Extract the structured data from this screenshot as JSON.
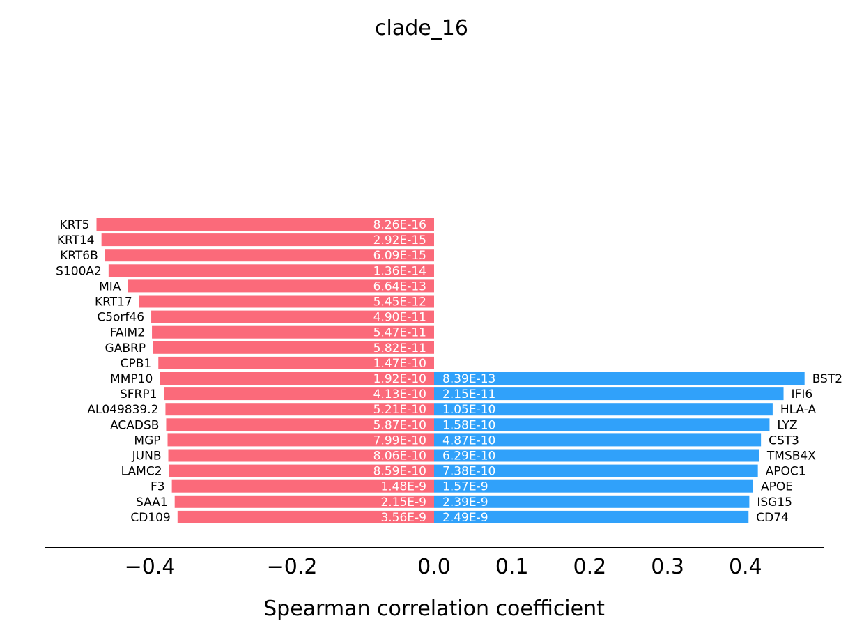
{
  "chart_data": {
    "type": "bar",
    "orientation": "horizontal-diverging",
    "title": "clade_16",
    "xlabel": "Spearman correlation coefficient",
    "ylabel": "",
    "grid": false,
    "left_xlim": [
      -0.48,
      0.0
    ],
    "right_xlim": [
      0.0,
      0.5
    ],
    "left_ticks": [
      "−0.4",
      "−0.2",
      "0.0"
    ],
    "left_tick_values": [
      -0.4,
      -0.2,
      0.0
    ],
    "right_ticks": [
      "0.1",
      "0.2",
      "0.3",
      "0.4"
    ],
    "right_tick_values": [
      0.1,
      0.2,
      0.3,
      0.4
    ],
    "colors": {
      "negative": "#fb6a7a",
      "positive": "#30a1fa"
    },
    "negative": [
      {
        "gene": "KRT5",
        "value": -0.475,
        "pvalue": "8.26E-16"
      },
      {
        "gene": "KRT14",
        "value": -0.468,
        "pvalue": "2.92E-15"
      },
      {
        "gene": "KRT6B",
        "value": -0.463,
        "pvalue": "6.09E-15"
      },
      {
        "gene": "S100A2",
        "value": -0.458,
        "pvalue": "1.36E-14"
      },
      {
        "gene": "MIA",
        "value": -0.431,
        "pvalue": "6.64E-13"
      },
      {
        "gene": "KRT17",
        "value": -0.415,
        "pvalue": "5.45E-12"
      },
      {
        "gene": "C5orf46",
        "value": -0.398,
        "pvalue": "4.90E-11"
      },
      {
        "gene": "FAIM2",
        "value": -0.397,
        "pvalue": "5.47E-11"
      },
      {
        "gene": "GABRP",
        "value": -0.396,
        "pvalue": "5.82E-11"
      },
      {
        "gene": "CPB1",
        "value": -0.388,
        "pvalue": "1.47E-10"
      },
      {
        "gene": "MMP10",
        "value": -0.386,
        "pvalue": "1.92E-10"
      },
      {
        "gene": "SFRP1",
        "value": -0.38,
        "pvalue": "4.13E-10"
      },
      {
        "gene": "AL049839.2",
        "value": -0.378,
        "pvalue": "5.21E-10"
      },
      {
        "gene": "ACADSB",
        "value": -0.377,
        "pvalue": "5.87E-10"
      },
      {
        "gene": "MGP",
        "value": -0.375,
        "pvalue": "7.99E-10"
      },
      {
        "gene": "JUNB",
        "value": -0.374,
        "pvalue": "8.06E-10"
      },
      {
        "gene": "LAMC2",
        "value": -0.373,
        "pvalue": "8.59E-10"
      },
      {
        "gene": "F3",
        "value": -0.369,
        "pvalue": "1.48E-9"
      },
      {
        "gene": "SAA1",
        "value": -0.365,
        "pvalue": "2.15E-9"
      },
      {
        "gene": "CD109",
        "value": -0.361,
        "pvalue": "3.56E-9"
      }
    ],
    "positive": [
      {
        "gene": "BST2",
        "value": 0.476,
        "pvalue": "8.39E-13"
      },
      {
        "gene": "IFI6",
        "value": 0.449,
        "pvalue": "2.15E-11"
      },
      {
        "gene": "HLA-A",
        "value": 0.435,
        "pvalue": "1.05E-10"
      },
      {
        "gene": "LYZ",
        "value": 0.431,
        "pvalue": "1.58E-10"
      },
      {
        "gene": "CST3",
        "value": 0.42,
        "pvalue": "4.87E-10"
      },
      {
        "gene": "TMSB4X",
        "value": 0.418,
        "pvalue": "6.29E-10"
      },
      {
        "gene": "APOC1",
        "value": 0.416,
        "pvalue": "7.38E-10"
      },
      {
        "gene": "APOE",
        "value": 0.41,
        "pvalue": "1.57E-9"
      },
      {
        "gene": "ISG15",
        "value": 0.405,
        "pvalue": "2.39E-9"
      },
      {
        "gene": "CD74",
        "value": 0.404,
        "pvalue": "2.49E-9"
      }
    ]
  }
}
